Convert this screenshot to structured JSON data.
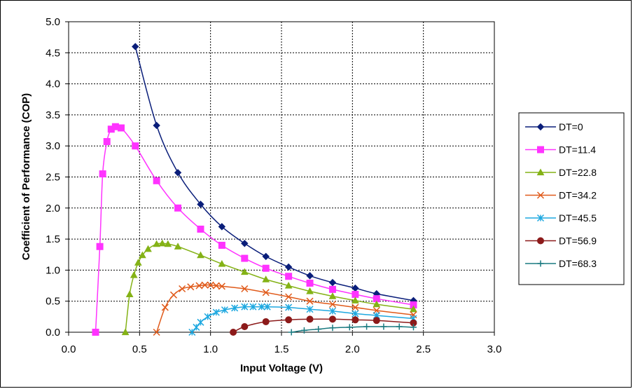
{
  "chart_data": {
    "type": "scatter",
    "xlabel": "Input Voltage (V)",
    "ylabel": "Coefficient of Performance (COP)",
    "xlim": [
      0,
      3
    ],
    "ylim": [
      0,
      5
    ],
    "xticks": [
      "0.0",
      "0.5",
      "1.0",
      "1.5",
      "2.0",
      "2.5",
      "3.0"
    ],
    "yticks": [
      "0.0",
      "0.5",
      "1.0",
      "1.5",
      "2.0",
      "2.5",
      "3.0",
      "3.5",
      "4.0",
      "4.5",
      "5.0"
    ],
    "grid": true,
    "legend_position": "right",
    "series": [
      {
        "name": "DT=0",
        "color": "#0a1e7a",
        "marker": "diamond",
        "points": [
          [
            0.47,
            4.6
          ],
          [
            0.62,
            3.33
          ],
          [
            0.77,
            2.57
          ],
          [
            0.93,
            2.06
          ],
          [
            1.08,
            1.7
          ],
          [
            1.24,
            1.43
          ],
          [
            1.39,
            1.22
          ],
          [
            1.55,
            1.05
          ],
          [
            1.7,
            0.91
          ],
          [
            1.86,
            0.8
          ],
          [
            2.02,
            0.71
          ],
          [
            2.17,
            0.62
          ],
          [
            2.43,
            0.51
          ]
        ]
      },
      {
        "name": "DT=11.4",
        "color": "#ff33ff",
        "marker": "square",
        "points": [
          [
            0.19,
            0.0
          ],
          [
            0.22,
            1.38
          ],
          [
            0.24,
            2.55
          ],
          [
            0.27,
            3.07
          ],
          [
            0.3,
            3.27
          ],
          [
            0.33,
            3.31
          ],
          [
            0.37,
            3.29
          ],
          [
            0.47,
            3.0
          ],
          [
            0.62,
            2.44
          ],
          [
            0.77,
            2.0
          ],
          [
            0.93,
            1.66
          ],
          [
            1.08,
            1.4
          ],
          [
            1.24,
            1.19
          ],
          [
            1.39,
            1.03
          ],
          [
            1.55,
            0.9
          ],
          [
            1.7,
            0.79
          ],
          [
            1.86,
            0.69
          ],
          [
            2.02,
            0.61
          ],
          [
            2.17,
            0.54
          ],
          [
            2.43,
            0.44
          ]
        ]
      },
      {
        "name": "DT=22.8",
        "color": "#84b216",
        "marker": "triangle",
        "points": [
          [
            0.4,
            0.0
          ],
          [
            0.43,
            0.61
          ],
          [
            0.46,
            0.92
          ],
          [
            0.49,
            1.12
          ],
          [
            0.52,
            1.24
          ],
          [
            0.56,
            1.34
          ],
          [
            0.62,
            1.42
          ],
          [
            0.66,
            1.43
          ],
          [
            0.7,
            1.42
          ],
          [
            0.77,
            1.38
          ],
          [
            0.93,
            1.24
          ],
          [
            1.08,
            1.1
          ],
          [
            1.24,
            0.97
          ],
          [
            1.39,
            0.85
          ],
          [
            1.55,
            0.75
          ],
          [
            1.7,
            0.66
          ],
          [
            1.86,
            0.58
          ],
          [
            2.02,
            0.51
          ],
          [
            2.17,
            0.45
          ],
          [
            2.43,
            0.37
          ]
        ]
      },
      {
        "name": "DT=34.2",
        "color": "#e05a1a",
        "marker": "x",
        "points": [
          [
            0.62,
            0.0
          ],
          [
            0.68,
            0.4
          ],
          [
            0.74,
            0.6
          ],
          [
            0.8,
            0.7
          ],
          [
            0.86,
            0.73
          ],
          [
            0.92,
            0.75
          ],
          [
            0.96,
            0.76
          ],
          [
            1.0,
            0.76
          ],
          [
            1.04,
            0.75
          ],
          [
            1.08,
            0.74
          ],
          [
            1.24,
            0.7
          ],
          [
            1.39,
            0.64
          ],
          [
            1.55,
            0.57
          ],
          [
            1.7,
            0.5
          ],
          [
            1.86,
            0.45
          ],
          [
            2.02,
            0.4
          ],
          [
            2.17,
            0.35
          ],
          [
            2.43,
            0.28
          ]
        ]
      },
      {
        "name": "DT=45.5",
        "color": "#1ea8e0",
        "marker": "star",
        "points": [
          [
            0.87,
            0.0
          ],
          [
            0.9,
            0.08
          ],
          [
            0.93,
            0.16
          ],
          [
            0.98,
            0.25
          ],
          [
            1.04,
            0.32
          ],
          [
            1.1,
            0.36
          ],
          [
            1.17,
            0.39
          ],
          [
            1.24,
            0.41
          ],
          [
            1.3,
            0.41
          ],
          [
            1.36,
            0.41
          ],
          [
            1.4,
            0.41
          ],
          [
            1.55,
            0.4
          ],
          [
            1.7,
            0.37
          ],
          [
            1.86,
            0.34
          ],
          [
            2.02,
            0.3
          ],
          [
            2.17,
            0.27
          ],
          [
            2.43,
            0.22
          ]
        ]
      },
      {
        "name": "DT=56.9",
        "color": "#8c1a1a",
        "marker": "circle",
        "points": [
          [
            1.16,
            0.0
          ],
          [
            1.24,
            0.09
          ],
          [
            1.39,
            0.17
          ],
          [
            1.55,
            0.2
          ],
          [
            1.7,
            0.21
          ],
          [
            1.86,
            0.21
          ],
          [
            2.02,
            0.2
          ],
          [
            2.17,
            0.19
          ],
          [
            2.43,
            0.15
          ]
        ]
      },
      {
        "name": "DT=68.3",
        "color": "#1a7a80",
        "marker": "plus",
        "points": [
          [
            1.57,
            0.0
          ],
          [
            1.66,
            0.03
          ],
          [
            1.76,
            0.05
          ],
          [
            1.86,
            0.07
          ],
          [
            1.98,
            0.08
          ],
          [
            2.1,
            0.09
          ],
          [
            2.22,
            0.09
          ],
          [
            2.33,
            0.09
          ],
          [
            2.43,
            0.08
          ]
        ]
      }
    ]
  }
}
